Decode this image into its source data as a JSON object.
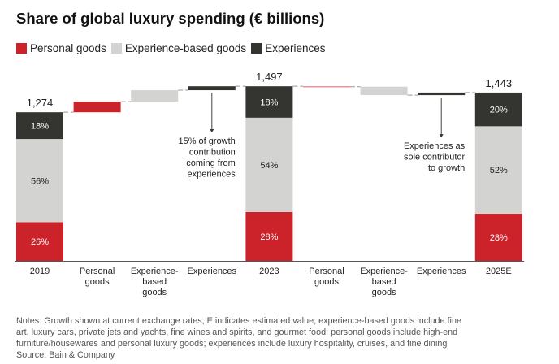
{
  "title": "Share of global luxury spending (€ billions)",
  "legend": [
    {
      "label": "Personal goods",
      "color": "#cc2229"
    },
    {
      "label": "Experience-based goods",
      "color": "#d3d3d1"
    },
    {
      "label": "Experiences",
      "color": "#343430"
    }
  ],
  "chart_data": {
    "type": "bar",
    "subtype": "waterfall",
    "title": "Share of global luxury spending (€ billions)",
    "xlabel": "",
    "ylabel": "",
    "grid": false,
    "legend_position": "top-left",
    "series_names": [
      "Personal goods",
      "Experience-based goods",
      "Experiences"
    ],
    "colors": {
      "Personal goods": "#cc2229",
      "Experience-based goods": "#d3d3d1",
      "Experiences": "#343430"
    },
    "categories": [
      [
        "2019"
      ],
      [
        "Personal",
        "goods"
      ],
      [
        "Experience-",
        "based",
        "goods"
      ],
      [
        "Experiences"
      ],
      [
        "2023"
      ],
      [
        "Personal",
        "goods"
      ],
      [
        "Experience-",
        "based",
        "goods"
      ],
      [
        "Experiences"
      ],
      [
        "2025E"
      ]
    ],
    "bars": [
      {
        "kind": "total",
        "total": 1274,
        "total_label": "1,274",
        "shares": [
          {
            "series": "Personal goods",
            "pct": 26,
            "label": "26%"
          },
          {
            "series": "Experience-based goods",
            "pct": 56,
            "label": "56%"
          },
          {
            "series": "Experiences",
            "pct": 18,
            "label": "18%"
          }
        ]
      },
      {
        "kind": "delta",
        "series": "Personal goods",
        "value": 91
      },
      {
        "kind": "delta",
        "series": "Experience-based goods",
        "value": 98
      },
      {
        "kind": "delta",
        "series": "Experiences",
        "value": 34
      },
      {
        "kind": "total",
        "total": 1497,
        "total_label": "1,497",
        "shares": [
          {
            "series": "Personal goods",
            "pct": 28,
            "label": "28%"
          },
          {
            "series": "Experience-based goods",
            "pct": 54,
            "label": "54%"
          },
          {
            "series": "Experiences",
            "pct": 18,
            "label": "18%"
          }
        ]
      },
      {
        "kind": "delta",
        "series": "Personal goods",
        "value": -4
      },
      {
        "kind": "delta",
        "series": "Experience-based goods",
        "value": -72
      },
      {
        "kind": "delta",
        "series": "Experiences",
        "value": 22
      },
      {
        "kind": "total",
        "total": 1443,
        "total_label": "1,443",
        "shares": [
          {
            "series": "Personal goods",
            "pct": 28,
            "label": "28%"
          },
          {
            "series": "Experience-based goods",
            "pct": 52,
            "label": "52%"
          },
          {
            "series": "Experiences",
            "pct": 20,
            "label": "20%"
          }
        ]
      }
    ],
    "ylim": [
      0,
      1600
    ],
    "annotations": [
      {
        "bar_index": 3,
        "lines": [
          "15% of growth",
          "contribution",
          "coming from",
          "experiences"
        ]
      },
      {
        "bar_index": 7,
        "lines": [
          "Experiences as",
          "sole contributor",
          "to growth"
        ]
      }
    ]
  },
  "notes": [
    "Notes: Growth shown at current exchange rates; E indicates estimated value; experience-based goods include fine",
    "art, luxury cars, private jets and yachts, fine wines and spirits, and gourmet food; personal goods include high-end",
    "furniture/housewares and personal luxury goods; experiences include luxury hospitality, cruises, and fine dining",
    "Source: Bain & Company"
  ]
}
